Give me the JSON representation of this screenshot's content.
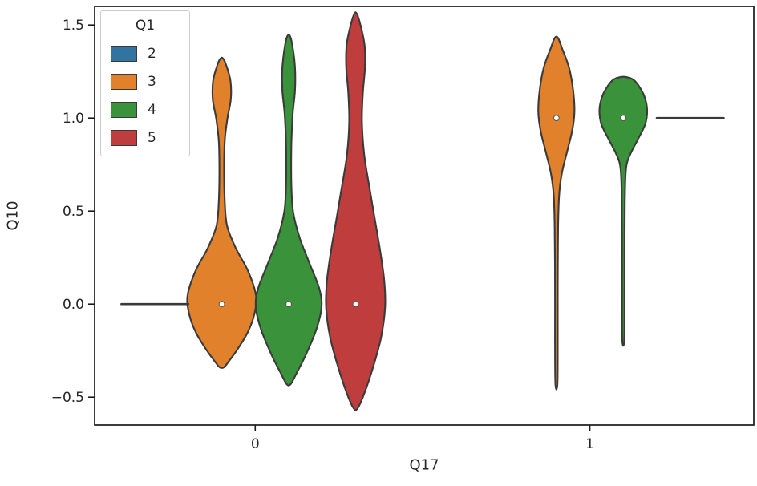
{
  "chart_data": {
    "type": "violin",
    "title": "",
    "xlabel": "Q17",
    "ylabel": "Q10",
    "xlim": [
      -0.48,
      1.49
    ],
    "ylim": [
      -0.65,
      1.6
    ],
    "grid": false,
    "x_ticks": [
      {
        "pos": 0,
        "label": "0"
      },
      {
        "pos": 1,
        "label": "1"
      }
    ],
    "y_ticks": [
      {
        "pos": -0.5,
        "label": "−0.5"
      },
      {
        "pos": 0.0,
        "label": "0.0"
      },
      {
        "pos": 0.5,
        "label": "0.5"
      },
      {
        "pos": 1.0,
        "label": "1.0"
      },
      {
        "pos": 1.5,
        "label": "1.5"
      }
    ],
    "legend": {
      "title": "Q1",
      "position": "upper left",
      "entries": [
        {
          "label": "2",
          "color": "#3274a1"
        },
        {
          "label": "3",
          "color": "#e1812c"
        },
        {
          "label": "4",
          "color": "#3a923a"
        },
        {
          "label": "5",
          "color": "#c03d3e"
        }
      ]
    },
    "edge_color": "#3a3a3a",
    "violins": [
      {
        "group": "0",
        "hue": "3",
        "color": "#e1812c",
        "center": -0.1,
        "median": 0.0,
        "profile": [
          [
            1.32,
            0.004
          ],
          [
            1.28,
            0.014
          ],
          [
            1.2,
            0.026
          ],
          [
            1.1,
            0.027
          ],
          [
            1.0,
            0.017
          ],
          [
            0.88,
            0.009
          ],
          [
            0.72,
            0.007
          ],
          [
            0.55,
            0.009
          ],
          [
            0.42,
            0.016
          ],
          [
            0.3,
            0.042
          ],
          [
            0.18,
            0.078
          ],
          [
            0.05,
            0.102
          ],
          [
            -0.05,
            0.098
          ],
          [
            -0.15,
            0.078
          ],
          [
            -0.24,
            0.048
          ],
          [
            -0.31,
            0.02
          ],
          [
            -0.34,
            0.006
          ]
        ]
      },
      {
        "group": "0",
        "hue": "4",
        "color": "#3a923a",
        "center": 0.1,
        "median": 0.0,
        "profile": [
          [
            1.44,
            0.004
          ],
          [
            1.38,
            0.012
          ],
          [
            1.27,
            0.019
          ],
          [
            1.15,
            0.019
          ],
          [
            1.02,
            0.012
          ],
          [
            0.85,
            0.008
          ],
          [
            0.65,
            0.008
          ],
          [
            0.5,
            0.013
          ],
          [
            0.36,
            0.032
          ],
          [
            0.22,
            0.062
          ],
          [
            0.08,
            0.092
          ],
          [
            -0.02,
            0.098
          ],
          [
            -0.14,
            0.082
          ],
          [
            -0.27,
            0.052
          ],
          [
            -0.37,
            0.024
          ],
          [
            -0.43,
            0.006
          ]
        ]
      },
      {
        "group": "0",
        "hue": "5",
        "color": "#c03d3e",
        "center": 0.3,
        "median": 0.0,
        "profile": [
          [
            1.56,
            0.004
          ],
          [
            1.49,
            0.016
          ],
          [
            1.39,
            0.027
          ],
          [
            1.27,
            0.028
          ],
          [
            1.14,
            0.022
          ],
          [
            0.98,
            0.019
          ],
          [
            0.8,
            0.026
          ],
          [
            0.62,
            0.042
          ],
          [
            0.45,
            0.058
          ],
          [
            0.28,
            0.074
          ],
          [
            0.12,
            0.086
          ],
          [
            -0.02,
            0.088
          ],
          [
            -0.18,
            0.076
          ],
          [
            -0.34,
            0.052
          ],
          [
            -0.48,
            0.026
          ],
          [
            -0.56,
            0.006
          ]
        ]
      },
      {
        "group": "1",
        "hue": "3",
        "color": "#e1812c",
        "center": 0.9,
        "median": 1.0,
        "profile": [
          [
            1.43,
            0.005
          ],
          [
            1.37,
            0.018
          ],
          [
            1.27,
            0.038
          ],
          [
            1.15,
            0.05
          ],
          [
            1.03,
            0.054
          ],
          [
            0.93,
            0.047
          ],
          [
            0.82,
            0.032
          ],
          [
            0.7,
            0.016
          ],
          [
            0.58,
            0.008
          ],
          [
            0.4,
            0.005
          ],
          [
            0.1,
            0.004
          ],
          [
            -0.2,
            0.004
          ],
          [
            -0.43,
            0.003
          ]
        ]
      },
      {
        "group": "1",
        "hue": "4",
        "color": "#3a923a",
        "center": 1.1,
        "median": 1.0,
        "profile": [
          [
            1.22,
            0.01
          ],
          [
            1.2,
            0.034
          ],
          [
            1.13,
            0.06
          ],
          [
            1.05,
            0.071
          ],
          [
            0.97,
            0.066
          ],
          [
            0.89,
            0.045
          ],
          [
            0.81,
            0.022
          ],
          [
            0.74,
            0.009
          ],
          [
            0.6,
            0.005
          ],
          [
            0.3,
            0.004
          ],
          [
            0.0,
            0.004
          ],
          [
            -0.2,
            0.003
          ]
        ]
      }
    ],
    "degenerate_violins": [
      {
        "group": "0",
        "hue": "2",
        "color": "#3274a1",
        "y": 0.0,
        "x_from": -0.4,
        "x_to": -0.2
      },
      {
        "group": "1",
        "hue": "5",
        "color": "#c03d3e",
        "y": 1.0,
        "x_from": 1.2,
        "x_to": 1.4
      }
    ]
  }
}
